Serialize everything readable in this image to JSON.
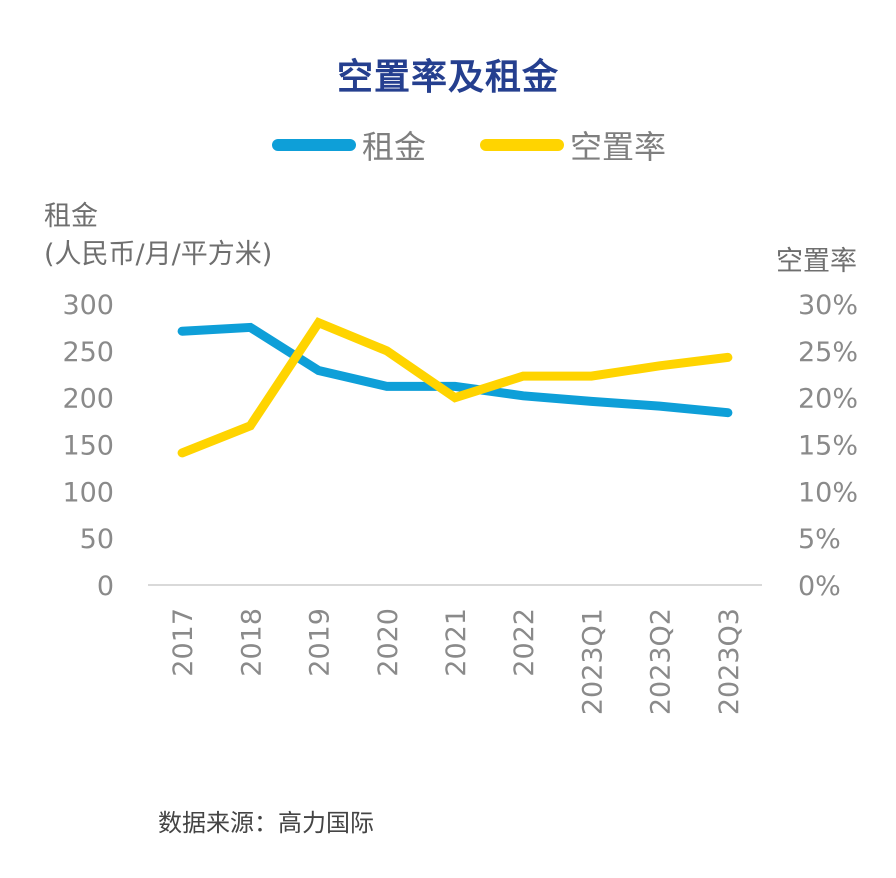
{
  "chart_data": {
    "type": "line",
    "title": "空置率及租金",
    "categories": [
      "2017",
      "2018",
      "2019",
      "2020",
      "2021",
      "2022",
      "2023Q1",
      "2023Q2",
      "2023Q3"
    ],
    "series": [
      {
        "name": "租金",
        "axis": "left",
        "color": "#0e9fd8",
        "values": [
          271,
          275,
          229,
          212,
          212,
          202,
          196,
          191,
          184
        ]
      },
      {
        "name": "空置率",
        "axis": "right",
        "color": "#ffd400",
        "values": [
          14.1,
          17.0,
          28.0,
          25.0,
          20.0,
          22.3,
          22.3,
          23.4,
          24.3
        ]
      }
    ],
    "ylabel_left": "租金\n(人民币/月/平方米)",
    "ylabel_left_lines": [
      "租金",
      "(人民币/月/平方米)"
    ],
    "ylabel_right": "空置率",
    "ylim_left": [
      0,
      300
    ],
    "ylim_right": [
      0,
      30
    ],
    "yticks_left": [
      "0",
      "50",
      "100",
      "150",
      "200",
      "250",
      "300"
    ],
    "yticks_right": [
      "0%",
      "5%",
      "10%",
      "15%",
      "20%",
      "25%",
      "30%"
    ],
    "grid": false,
    "legend_position": "top-center",
    "xtick_rotation": "vertical"
  },
  "legend": [
    {
      "label": "租金",
      "color": "#0e9fd8"
    },
    {
      "label": "空置率",
      "color": "#ffd400"
    }
  ],
  "source": "数据来源：高力国际",
  "colors": {
    "title": "#253f8f",
    "axis_line": "#d9d9d9",
    "tick_text": "#8a8a8a"
  }
}
